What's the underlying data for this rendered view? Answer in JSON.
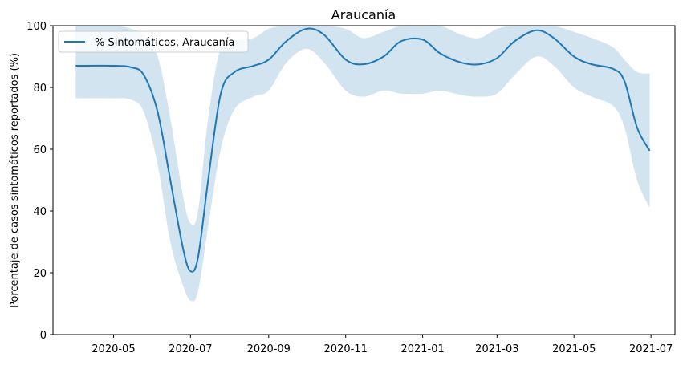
{
  "chart_data": {
    "type": "line",
    "title": "Araucanía",
    "xlabel": "",
    "ylabel": "Porcentaje de casos sintomáticos reportados (%)",
    "ylim": [
      0,
      100
    ],
    "xlim": [
      "2020-03-14",
      "2021-07-20"
    ],
    "grid": false,
    "legend_position": "top-left",
    "x_ticks": [
      "2020-05",
      "2020-07",
      "2020-09",
      "2020-11",
      "2021-01",
      "2021-03",
      "2021-05",
      "2021-07"
    ],
    "y_ticks": [
      0,
      20,
      40,
      60,
      80,
      100
    ],
    "line_color": "#1f77b4",
    "band_color": "#1f77b4",
    "band_opacity": 0.2,
    "series": [
      {
        "name": "% Sintomáticos, Araucanía",
        "points": [
          {
            "x": "2020-04-01",
            "y": 87,
            "lo": 76.5,
            "hi": 100
          },
          {
            "x": "2020-05-01",
            "y": 87,
            "lo": 76.5,
            "hi": 100
          },
          {
            "x": "2020-05-15",
            "y": 86.5,
            "lo": 76,
            "hi": 99
          },
          {
            "x": "2020-05-25",
            "y": 84,
            "lo": 72,
            "hi": 97
          },
          {
            "x": "2020-06-05",
            "y": 72,
            "lo": 55,
            "hi": 90
          },
          {
            "x": "2020-06-15",
            "y": 50,
            "lo": 30,
            "hi": 70
          },
          {
            "x": "2020-06-25",
            "y": 28,
            "lo": 16,
            "hi": 45
          },
          {
            "x": "2020-07-01",
            "y": 20.5,
            "lo": 11,
            "hi": 36
          },
          {
            "x": "2020-07-07",
            "y": 25,
            "lo": 14,
            "hi": 40
          },
          {
            "x": "2020-07-15",
            "y": 50,
            "lo": 35,
            "hi": 70
          },
          {
            "x": "2020-07-25",
            "y": 78,
            "lo": 60,
            "hi": 93
          },
          {
            "x": "2020-08-05",
            "y": 85,
            "lo": 73,
            "hi": 95
          },
          {
            "x": "2020-08-20",
            "y": 87,
            "lo": 77,
            "hi": 96
          },
          {
            "x": "2020-09-01",
            "y": 89,
            "lo": 79,
            "hi": 99
          },
          {
            "x": "2020-09-15",
            "y": 95,
            "lo": 88,
            "hi": 100
          },
          {
            "x": "2020-10-01",
            "y": 99,
            "lo": 92.5,
            "hi": 100
          },
          {
            "x": "2020-10-15",
            "y": 97,
            "lo": 88,
            "hi": 100
          },
          {
            "x": "2020-11-01",
            "y": 89,
            "lo": 79,
            "hi": 99
          },
          {
            "x": "2020-11-15",
            "y": 87.5,
            "lo": 77,
            "hi": 96
          },
          {
            "x": "2020-12-01",
            "y": 90,
            "lo": 79,
            "hi": 98
          },
          {
            "x": "2020-12-15",
            "y": 95,
            "lo": 78,
            "hi": 100
          },
          {
            "x": "2021-01-01",
            "y": 95.5,
            "lo": 78,
            "hi": 100
          },
          {
            "x": "2021-01-15",
            "y": 91,
            "lo": 79,
            "hi": 100
          },
          {
            "x": "2021-02-01",
            "y": 88,
            "lo": 77.5,
            "hi": 97
          },
          {
            "x": "2021-02-15",
            "y": 87.5,
            "lo": 77,
            "hi": 96
          },
          {
            "x": "2021-03-01",
            "y": 89.5,
            "lo": 78,
            "hi": 99
          },
          {
            "x": "2021-03-15",
            "y": 95,
            "lo": 84,
            "hi": 100
          },
          {
            "x": "2021-04-01",
            "y": 98.5,
            "lo": 90,
            "hi": 100
          },
          {
            "x": "2021-04-15",
            "y": 96,
            "lo": 87,
            "hi": 100
          },
          {
            "x": "2021-05-01",
            "y": 90,
            "lo": 80,
            "hi": 98
          },
          {
            "x": "2021-05-15",
            "y": 87.5,
            "lo": 77,
            "hi": 96
          },
          {
            "x": "2021-06-01",
            "y": 86,
            "lo": 74,
            "hi": 93
          },
          {
            "x": "2021-06-10",
            "y": 82,
            "lo": 67,
            "hi": 89
          },
          {
            "x": "2021-06-20",
            "y": 67,
            "lo": 50,
            "hi": 85
          },
          {
            "x": "2021-06-30",
            "y": 59.5,
            "lo": 41,
            "hi": 84.5
          }
        ]
      }
    ]
  }
}
